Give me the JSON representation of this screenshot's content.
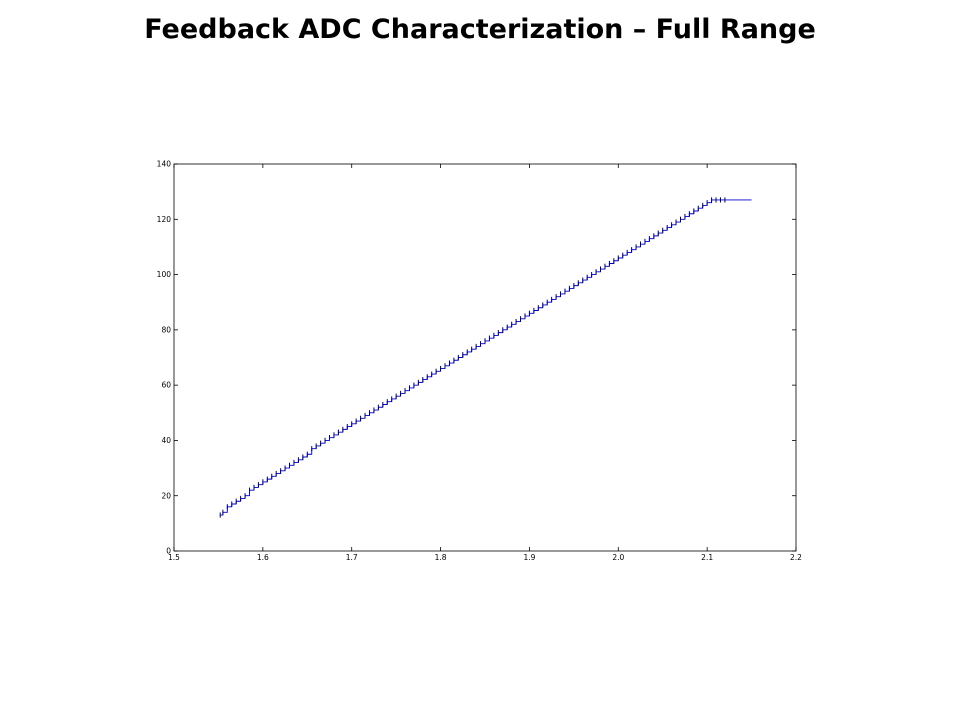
{
  "slide": {
    "title": "Feedback ADC Characterization – Full Range"
  },
  "chart_data": {
    "type": "line",
    "title": "",
    "xlabel": "",
    "ylabel": "",
    "xlim": [
      1.5,
      2.2
    ],
    "ylim": [
      0,
      140
    ],
    "x_ticks": [
      "1.5",
      "1.6",
      "1.7",
      "1.8",
      "1.9",
      "2.0",
      "2.1",
      "2.2"
    ],
    "y_ticks": [
      "0",
      "20",
      "40",
      "60",
      "80",
      "100",
      "120",
      "140"
    ],
    "grid": false,
    "legend": "none",
    "line_color": "#0000cc",
    "series": [
      {
        "style": "staircase",
        "x": [
          1.552,
          1.555,
          1.56,
          1.565,
          1.57,
          1.575,
          1.58,
          1.585,
          1.59,
          1.595,
          1.6,
          1.605,
          1.61,
          1.615,
          1.62,
          1.625,
          1.63,
          1.635,
          1.64,
          1.645,
          1.65,
          1.655,
          1.66,
          1.665,
          1.67,
          1.675,
          1.68,
          1.685,
          1.69,
          1.695,
          1.7,
          1.705,
          1.71,
          1.715,
          1.72,
          1.725,
          1.73,
          1.735,
          1.74,
          1.745,
          1.75,
          1.755,
          1.76,
          1.765,
          1.77,
          1.775,
          1.78,
          1.785,
          1.79,
          1.795,
          1.8,
          1.805,
          1.81,
          1.815,
          1.82,
          1.825,
          1.83,
          1.835,
          1.84,
          1.845,
          1.85,
          1.855,
          1.86,
          1.865,
          1.87,
          1.875,
          1.88,
          1.885,
          1.89,
          1.895,
          1.9,
          1.905,
          1.91,
          1.915,
          1.92,
          1.925,
          1.93,
          1.935,
          1.94,
          1.945,
          1.95,
          1.955,
          1.96,
          1.965,
          1.97,
          1.975,
          1.98,
          1.985,
          1.99,
          1.995,
          2.0,
          2.005,
          2.01,
          2.015,
          2.02,
          2.025,
          2.03,
          2.035,
          2.04,
          2.045,
          2.05,
          2.055,
          2.06,
          2.065,
          2.07,
          2.075,
          2.08,
          2.085,
          2.09,
          2.095,
          2.1,
          2.105,
          2.11,
          2.115,
          2.12,
          2.15
        ],
        "y": [
          13,
          14,
          16,
          17,
          18,
          19,
          20,
          22,
          23,
          24,
          25,
          26,
          27,
          28,
          29,
          30,
          31,
          32,
          33,
          34,
          35,
          37,
          38,
          39,
          40,
          41,
          42,
          43,
          44,
          45,
          46,
          47,
          48,
          49,
          50,
          51,
          52,
          53,
          54,
          55,
          56,
          57,
          58,
          59,
          60,
          61,
          62,
          63,
          64,
          65,
          66,
          67,
          68,
          69,
          70,
          71,
          72,
          73,
          74,
          75,
          76,
          77,
          78,
          79,
          80,
          81,
          82,
          83,
          84,
          85,
          86,
          87,
          88,
          89,
          90,
          91,
          92,
          93,
          94,
          95,
          96,
          97,
          98,
          99,
          100,
          101,
          102,
          103,
          104,
          105,
          106,
          107,
          108,
          109,
          110,
          111,
          112,
          113,
          114,
          115,
          116,
          117,
          118,
          119,
          120,
          121,
          122,
          123,
          124,
          125,
          126,
          127,
          127,
          127,
          127,
          127
        ]
      }
    ]
  }
}
